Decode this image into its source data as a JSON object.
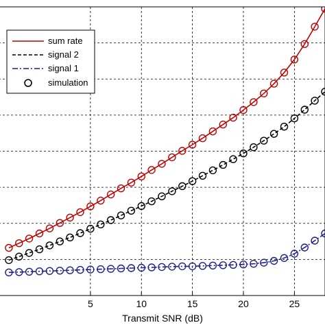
{
  "chart_data": {
    "type": "line",
    "title": "",
    "xlabel": "Transmit SNR (dB)",
    "ylabel": "",
    "xlim": [
      -4,
      28
    ],
    "ylim": [
      0,
      8
    ],
    "grid": true,
    "xticks": [
      5,
      10,
      15,
      20,
      25
    ],
    "legend": {
      "placement": "top-left"
    },
    "series": [
      {
        "name": "sum rate",
        "color": "#c00000",
        "dash": "solid",
        "x": [
          -3,
          -2,
          -1,
          0,
          1,
          2,
          3,
          4,
          5,
          6,
          7,
          8,
          9,
          10,
          11,
          12,
          13,
          14,
          15,
          16,
          17,
          18,
          19,
          20,
          21,
          22,
          23,
          24,
          25,
          26,
          27,
          28
        ],
        "y": [
          1.32,
          1.45,
          1.58,
          1.72,
          1.86,
          2.01,
          2.16,
          2.31,
          2.47,
          2.63,
          2.8,
          2.97,
          3.13,
          3.3,
          3.48,
          3.65,
          3.83,
          4.01,
          4.18,
          4.36,
          4.55,
          4.74,
          4.93,
          5.14,
          5.36,
          5.6,
          5.87,
          6.18,
          6.54,
          6.97,
          7.45,
          7.95
        ]
      },
      {
        "name": "signal 2",
        "color": "#000000",
        "dash": "dashed",
        "x": [
          -3,
          -2,
          -1,
          0,
          1,
          2,
          3,
          4,
          5,
          6,
          7,
          8,
          9,
          10,
          11,
          12,
          13,
          14,
          15,
          16,
          17,
          18,
          19,
          20,
          21,
          22,
          23,
          24,
          25,
          26,
          27,
          28
        ],
        "y": [
          0.98,
          1.08,
          1.18,
          1.28,
          1.39,
          1.5,
          1.61,
          1.73,
          1.85,
          1.97,
          2.09,
          2.22,
          2.35,
          2.48,
          2.61,
          2.75,
          2.89,
          3.03,
          3.17,
          3.32,
          3.47,
          3.62,
          3.78,
          3.94,
          4.11,
          4.29,
          4.48,
          4.68,
          4.91,
          5.15,
          5.4,
          5.65
        ]
      },
      {
        "name": "signal 1",
        "color": "#1f1f8a",
        "dash": "dashdot",
        "x": [
          -3,
          -2,
          -1,
          0,
          1,
          2,
          3,
          4,
          5,
          6,
          7,
          8,
          9,
          10,
          11,
          12,
          13,
          14,
          15,
          16,
          17,
          18,
          19,
          20,
          21,
          22,
          23,
          24,
          25,
          26,
          27,
          28
        ],
        "y": [
          0.64,
          0.65,
          0.66,
          0.67,
          0.68,
          0.69,
          0.7,
          0.71,
          0.72,
          0.73,
          0.74,
          0.75,
          0.76,
          0.77,
          0.78,
          0.79,
          0.8,
          0.81,
          0.81,
          0.82,
          0.83,
          0.84,
          0.85,
          0.86,
          0.88,
          0.91,
          0.96,
          1.04,
          1.16,
          1.33,
          1.52,
          1.72
        ]
      }
    ],
    "simulation": {
      "name": "simulation",
      "marker": "circle"
    }
  }
}
